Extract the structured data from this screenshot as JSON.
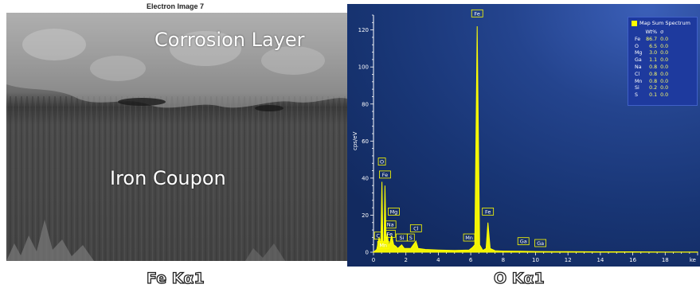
{
  "sem": {
    "title": "Electron Image 7",
    "corrosion_label": "Corrosion Layer",
    "iron_label": "Iron Coupon"
  },
  "captions": {
    "left": "Fe Kα1",
    "right": "O Kα1"
  },
  "colors": {
    "spectrum": "#ffff00",
    "plot_background": "#16326f",
    "label_box": "#ffff00"
  },
  "chart_data": {
    "type": "line",
    "title": "",
    "xlabel": "ke",
    "ylabel": "cps/eV",
    "xlim": [
      0,
      20
    ],
    "ylim": [
      0,
      128
    ],
    "x_ticks": [
      0,
      2,
      4,
      6,
      8,
      10,
      12,
      14,
      16,
      18
    ],
    "y_ticks": [
      0,
      20,
      40,
      60,
      80,
      100,
      120
    ],
    "series": [
      {
        "x": [
          0,
          0.2,
          0.35,
          0.45,
          0.52,
          0.58,
          0.65,
          0.71,
          0.78,
          0.85,
          0.95,
          1.04,
          1.12,
          1.25,
          1.4,
          1.5,
          1.74,
          1.9,
          2.3,
          2.62,
          2.75,
          3.2,
          4,
          5,
          5.9,
          6.1,
          6.25,
          6.4,
          6.55,
          6.75,
          6.95,
          7.06,
          7.2,
          7.5,
          8,
          9,
          10,
          11,
          12,
          14,
          16,
          18,
          20
        ],
        "y": [
          0,
          1.5,
          8,
          4,
          38,
          6,
          4,
          36,
          5,
          10,
          3,
          6,
          9,
          4,
          3,
          2,
          4,
          2,
          2,
          6,
          2,
          1.5,
          1.2,
          1,
          1.2,
          2.5,
          4,
          122,
          4,
          1,
          2,
          16,
          2,
          0.8,
          0.6,
          0.5,
          0.4,
          0.3,
          0.3,
          0.2,
          0.2,
          0.1,
          0.1
        ]
      }
    ],
    "peak_labels": [
      {
        "label": "O",
        "x": 0.52,
        "y": 47
      },
      {
        "label": "Fe",
        "x": 0.71,
        "y": 40
      },
      {
        "label": "Mg",
        "x": 1.25,
        "y": 20
      },
      {
        "label": "Na",
        "x": 1.04,
        "y": 13
      },
      {
        "label": "Fe",
        "x": 1.0,
        "y": 8
      },
      {
        "label": "C",
        "x": 0.28,
        "y": 7
      },
      {
        "label": "Mn",
        "x": 0.6,
        "y": 2
      },
      {
        "label": "Si",
        "x": 1.74,
        "y": 6
      },
      {
        "label": "S",
        "x": 2.3,
        "y": 6
      },
      {
        "label": "Cl",
        "x": 2.62,
        "y": 11
      },
      {
        "label": "Mn",
        "x": 5.9,
        "y": 6
      },
      {
        "label": "Fe",
        "x": 6.4,
        "y": 127
      },
      {
        "label": "Fe",
        "x": 7.06,
        "y": 20
      },
      {
        "label": "Ga",
        "x": 9.25,
        "y": 4
      },
      {
        "label": "Ga",
        "x": 10.3,
        "y": 3
      }
    ],
    "legend": {
      "title": "Map Sum Spectrum",
      "position": "top-right",
      "headers": [
        "",
        "Wt%",
        "σ"
      ],
      "rows": [
        {
          "element": "Fe",
          "wt": "86.7",
          "sigma": "0.0"
        },
        {
          "element": "O",
          "wt": "6.5",
          "sigma": "0.0"
        },
        {
          "element": "Mg",
          "wt": "3.0",
          "sigma": "0.0"
        },
        {
          "element": "Ga",
          "wt": "1.1",
          "sigma": "0.0"
        },
        {
          "element": "Na",
          "wt": "0.8",
          "sigma": "0.0"
        },
        {
          "element": "Cl",
          "wt": "0.8",
          "sigma": "0.0"
        },
        {
          "element": "Mn",
          "wt": "0.8",
          "sigma": "0.0"
        },
        {
          "element": "Si",
          "wt": "0.2",
          "sigma": "0.0"
        },
        {
          "element": "S",
          "wt": "0.1",
          "sigma": "0.0"
        }
      ]
    },
    "grid": false
  }
}
